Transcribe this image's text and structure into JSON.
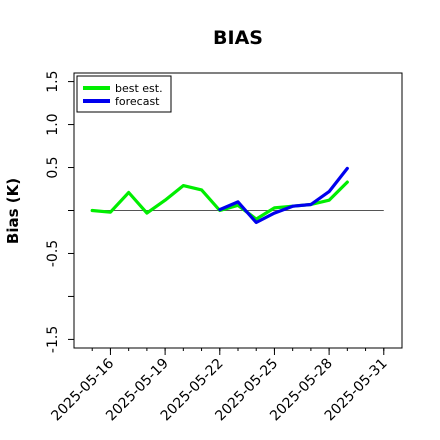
{
  "chart_data": {
    "type": "line",
    "title": "BIAS",
    "ylabel": "Bias (K)",
    "xlabel": "",
    "ylim": [
      -1.6,
      1.6
    ],
    "yticks": [
      -1.5,
      -1.0,
      -0.5,
      0.0,
      0.5,
      1.0,
      1.5
    ],
    "ytick_labels": [
      "-1.5",
      "",
      "-0.5",
      "",
      "0.5",
      "1.0",
      "1.5"
    ],
    "x_start": "2025-05-14",
    "x_end": "2025-06-01",
    "xticks": [
      "2025-05-16",
      "2025-05-19",
      "2025-05-22",
      "2025-05-25",
      "2025-05-28",
      "2025-05-31"
    ],
    "xtick_labels": [
      "2025-05-16",
      "2025-05-19",
      "2025-05-22",
      "2025-05-25",
      "2025-05-28",
      "2025-05-31"
    ],
    "highlight_xtick": "2025-05-22",
    "highlight_color": "#228b22",
    "reference_line": 0.0,
    "grid": false,
    "legend_position": "top-left",
    "series": [
      {
        "name": "best est.",
        "color": "#00ee00",
        "x": [
          "2025-05-15",
          "2025-05-16",
          "2025-05-17",
          "2025-05-18",
          "2025-05-19",
          "2025-05-20",
          "2025-05-21",
          "2025-05-22",
          "2025-05-23",
          "2025-05-24",
          "2025-05-25",
          "2025-05-26",
          "2025-05-27",
          "2025-05-28",
          "2025-05-29"
        ],
        "values": [
          0.0,
          -0.02,
          0.21,
          -0.03,
          0.12,
          0.29,
          0.24,
          0.0,
          0.06,
          -0.1,
          0.03,
          0.05,
          0.07,
          0.12,
          0.33
        ]
      },
      {
        "name": "forecast",
        "color": "#0000ee",
        "x": [
          "2025-05-22",
          "2025-05-23",
          "2025-05-24",
          "2025-05-25",
          "2025-05-26",
          "2025-05-27",
          "2025-05-28",
          "2025-05-29"
        ],
        "values": [
          0.01,
          0.1,
          -0.14,
          -0.03,
          0.05,
          0.07,
          0.22,
          0.49
        ]
      }
    ]
  }
}
